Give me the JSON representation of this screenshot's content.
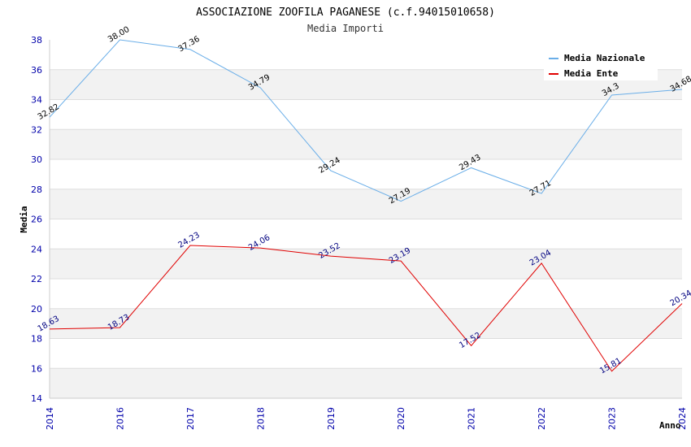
{
  "chart_data": {
    "type": "line",
    "title": "ASSOCIAZIONE ZOOFILA PAGANESE (c.f.94015010658)",
    "subtitle": "Media Importi",
    "xlabel": "Anno",
    "ylabel": "Media",
    "ylim": [
      14,
      38
    ],
    "yticks": [
      "14",
      "16",
      "18",
      "20",
      "22",
      "24",
      "26",
      "28",
      "30",
      "32",
      "34",
      "36",
      "38"
    ],
    "categories": [
      "2014",
      "2016",
      "2017",
      "2018",
      "2019",
      "2020",
      "2021",
      "2022",
      "2023",
      "2024"
    ],
    "grid": "horizontal bands",
    "legend_position": "top-right",
    "series": [
      {
        "name": "Media Nazionale",
        "color": "#6aaee8",
        "values": [
          32.82,
          38.0,
          37.36,
          34.79,
          29.24,
          27.19,
          29.43,
          27.71,
          34.3,
          34.68
        ],
        "labels": [
          "32.82",
          "38.00",
          "37.36",
          "34.79",
          "29.24",
          "27.19",
          "29.43",
          "27.71",
          "34.3",
          "34.68"
        ]
      },
      {
        "name": "Media Ente",
        "color": "#e00000",
        "values": [
          18.63,
          18.73,
          24.23,
          24.06,
          23.52,
          23.19,
          17.52,
          23.04,
          15.81,
          20.34
        ],
        "labels": [
          "18.63",
          "18.73",
          "24.23",
          "24.06",
          "23.52",
          "23.19",
          "17.52",
          "23.04",
          "15.81",
          "20.34"
        ]
      }
    ]
  }
}
